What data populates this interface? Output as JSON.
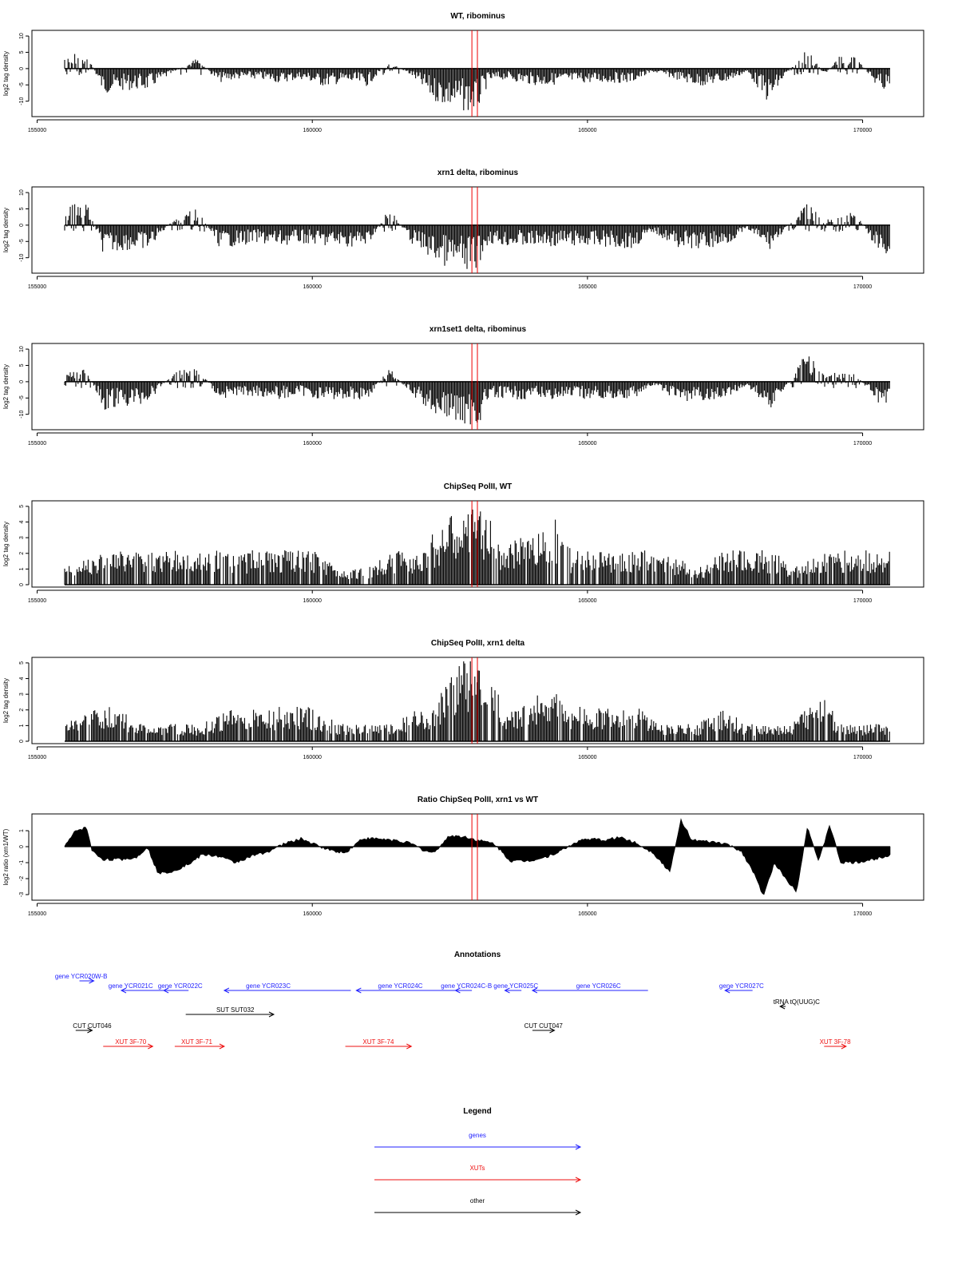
{
  "colors": {
    "genes": "#2222ff",
    "xuts": "#ee1111",
    "other": "#000000",
    "highlight": "#ee0000",
    "bars": "#000000"
  },
  "x_axis": {
    "min": 155000,
    "max": 170500,
    "ticks": [
      155000,
      160000,
      165000,
      170000
    ]
  },
  "highlight_positions": [
    162900,
    163000
  ],
  "chart_data": [
    {
      "type": "bar",
      "title": "WT, ribominus",
      "ylabel": "log2 tag density",
      "ylim": [
        -14,
        11
      ],
      "yticks": [
        -10,
        -5,
        0,
        5,
        10
      ],
      "x": [
        155600,
        155900,
        156200,
        156600,
        157000,
        157500,
        157900,
        158300,
        158600,
        159000,
        159400,
        159800,
        160200,
        160600,
        161000,
        161400,
        161800,
        162200,
        162500,
        162800,
        163000,
        163200,
        163500,
        163800,
        164200,
        164600,
        165000,
        165400,
        165800,
        166200,
        166600,
        167000,
        167500,
        167900,
        168300,
        168600,
        169000,
        169300,
        169600,
        169900,
        170300
      ],
      "values": [
        4,
        5,
        -7,
        -6,
        -6,
        -1,
        3,
        -4,
        -3,
        -3,
        -4,
        -3,
        -5,
        -4,
        -5,
        2,
        -2,
        -9,
        -11,
        -12,
        -12,
        -4,
        -3,
        -4,
        -5,
        -4,
        -4,
        -4,
        -4,
        -1,
        -3,
        -5,
        -4,
        -1,
        -10,
        -2,
        6,
        -2,
        4,
        3,
        -6
      ]
    },
    {
      "type": "bar",
      "title": "xrn1 delta, ribominus",
      "ylabel": "log2 tag density",
      "ylim": [
        -14,
        11
      ],
      "yticks": [
        -10,
        -5,
        0,
        5,
        10
      ],
      "x": [
        155600,
        155900,
        156200,
        156600,
        157000,
        157500,
        157900,
        158300,
        158600,
        159000,
        159400,
        159800,
        160200,
        160600,
        161000,
        161400,
        161800,
        162200,
        162500,
        162800,
        163000,
        163200,
        163500,
        163800,
        164200,
        164600,
        165000,
        165400,
        165800,
        166200,
        166600,
        167000,
        167500,
        167900,
        168300,
        168600,
        169000,
        169300,
        169600,
        169900,
        170300
      ],
      "values": [
        6,
        7,
        -8,
        -7,
        -7,
        2,
        5,
        -6,
        -6,
        -5,
        -6,
        -5,
        -6,
        -6,
        -6,
        5,
        -5,
        -10,
        -12,
        -13,
        -12,
        -5,
        -6,
        -6,
        -6,
        -6,
        -6,
        -6,
        -7,
        -2,
        -6,
        -7,
        -6,
        -1,
        -7,
        -1,
        7,
        2,
        4,
        3,
        -8
      ]
    },
    {
      "type": "bar",
      "title": "xrn1set1 delta, ribominus",
      "ylabel": "log2 tag density",
      "ylim": [
        -14,
        11
      ],
      "yticks": [
        -10,
        -5,
        0,
        5,
        10
      ],
      "x": [
        155600,
        155900,
        156200,
        156600,
        157000,
        157500,
        157900,
        158300,
        158600,
        159000,
        159400,
        159800,
        160200,
        160600,
        161000,
        161400,
        161800,
        162200,
        162500,
        162800,
        163000,
        163200,
        163500,
        163800,
        164200,
        164600,
        165000,
        165400,
        165800,
        166200,
        166600,
        167000,
        167500,
        167900,
        168300,
        168600,
        169000,
        169300,
        169600,
        169900,
        170300
      ],
      "values": [
        3,
        4,
        -8,
        -7,
        -6,
        3,
        5,
        -5,
        -4,
        -4,
        -5,
        -4,
        -5,
        -5,
        -5,
        4,
        -4,
        -9,
        -11,
        -12,
        -13,
        -5,
        -5,
        -5,
        -5,
        -5,
        -5,
        -5,
        -5,
        -1,
        -5,
        -6,
        -5,
        -1,
        -8,
        -2,
        9,
        2,
        3,
        2,
        -7
      ]
    },
    {
      "type": "bar",
      "title": "ChipSeq PolII, WT",
      "ylabel": "log2 tag density",
      "ylim": [
        0,
        5.2
      ],
      "yticks": [
        0,
        1,
        2,
        3,
        4,
        5
      ],
      "x": [
        155500,
        156100,
        156500,
        156900,
        157600,
        158000,
        158500,
        159000,
        159500,
        160000,
        160500,
        161000,
        161500,
        161900,
        162200,
        162500,
        162800,
        163000,
        163200,
        163500,
        163800,
        164100,
        164400,
        164700,
        165100,
        165500,
        165900,
        166300,
        167000,
        167500,
        167900,
        168400,
        168700,
        169300,
        169600,
        170000,
        170300
      ],
      "values": [
        1,
        2,
        2,
        2,
        2,
        2,
        2,
        2,
        2,
        2,
        1,
        1,
        2,
        2,
        3,
        4,
        4,
        5,
        4,
        2,
        3,
        3,
        4,
        2,
        2,
        2,
        2,
        2,
        1,
        2,
        2,
        2,
        1,
        2,
        2,
        2,
        2
      ]
    },
    {
      "type": "bar",
      "title": "ChipSeq PolII, xrn1 delta",
      "ylabel": "log2 tag density",
      "ylim": [
        0,
        5.2
      ],
      "yticks": [
        0,
        1,
        2,
        3,
        4,
        5
      ],
      "x": [
        155500,
        156100,
        156500,
        156900,
        157600,
        158000,
        158500,
        159000,
        159500,
        160000,
        160500,
        161000,
        161500,
        161900,
        162200,
        162500,
        162800,
        163000,
        163200,
        163500,
        163800,
        164100,
        164400,
        164700,
        165100,
        165500,
        165900,
        166300,
        167000,
        167500,
        167900,
        168400,
        168700,
        169300,
        169600,
        170000,
        170300
      ],
      "values": [
        1,
        2,
        2,
        1,
        1,
        1,
        2,
        2,
        2,
        2,
        1,
        1,
        1,
        2,
        2,
        4,
        5,
        5,
        4,
        2,
        2,
        3,
        3,
        2,
        2,
        2,
        2,
        1,
        1,
        2,
        1,
        1,
        1,
        3,
        1,
        1,
        1
      ]
    },
    {
      "type": "area",
      "title": "Ratio ChipSeq PolII, xrn1 vs WT",
      "ylabel": "log2 ratio (xrn1/WT)",
      "ylim": [
        -3.2,
        1.9
      ],
      "yticks": [
        -3,
        -2,
        -1,
        0,
        1
      ],
      "x": [
        155500,
        155700,
        155900,
        156000,
        156200,
        156500,
        156800,
        157000,
        157200,
        157500,
        157800,
        158000,
        158300,
        158600,
        158900,
        159200,
        159500,
        159800,
        160000,
        160300,
        160600,
        160900,
        161200,
        161500,
        161800,
        162000,
        162200,
        162500,
        162800,
        163000,
        163300,
        163600,
        163900,
        164200,
        164500,
        164800,
        165000,
        165300,
        165600,
        165900,
        166200,
        166500,
        166700,
        166900,
        167200,
        167500,
        167800,
        168000,
        168200,
        168400,
        168600,
        168800,
        169000,
        169200,
        169400,
        169600,
        169900,
        170200,
        170500
      ],
      "values": [
        0,
        1.0,
        1.2,
        -0.3,
        -0.8,
        -0.8,
        -0.7,
        0,
        -1.7,
        -1.5,
        -1.0,
        -0.5,
        -0.6,
        -1.0,
        -0.6,
        -0.3,
        0.2,
        0.5,
        0.2,
        -0.2,
        -0.4,
        0.5,
        0.5,
        0.4,
        0.2,
        -0.2,
        -0.4,
        0.7,
        0.6,
        0.4,
        0.2,
        -0.9,
        -0.9,
        -0.7,
        -0.3,
        0.3,
        0.5,
        0.4,
        0.6,
        0.2,
        -0.4,
        -1.6,
        1.7,
        0.4,
        0.3,
        0.2,
        -0.3,
        -1.5,
        -3.1,
        -1.0,
        -2.0,
        -2.8,
        1.3,
        -1.0,
        1.4,
        -1.0,
        -1.0,
        -0.8,
        -0.5
      ]
    }
  ],
  "annotations": {
    "title": "Annotations",
    "items": [
      {
        "label": "gene YCR020W-B",
        "color": "genes",
        "row": 0,
        "start": 156030,
        "end": 156030,
        "dir": "right",
        "text_x": 155800
      },
      {
        "label": "gene YCR021C",
        "color": "genes",
        "row": 1,
        "start": 156530,
        "end": 157750,
        "dir": "left",
        "text_x": 156700
      },
      {
        "label": "gene YCR022C",
        "color": "genes",
        "row": 1,
        "start": 157300,
        "end": 157750,
        "dir": "left",
        "text_x": 157600
      },
      {
        "label": "gene YCR023C",
        "color": "genes",
        "row": 1,
        "start": 158400,
        "end": 160700,
        "dir": "left",
        "text_x": 159200
      },
      {
        "label": "gene YCR024C",
        "color": "genes",
        "row": 1,
        "start": 160800,
        "end": 162700,
        "dir": "left",
        "text_x": 161600
      },
      {
        "label": "gene YCR024C-B",
        "color": "genes",
        "row": 1,
        "start": 162600,
        "end": 162900,
        "dir": "left",
        "text_x": 162800
      },
      {
        "label": "gene YCR025C",
        "color": "genes",
        "row": 1,
        "start": 163500,
        "end": 163800,
        "dir": "left",
        "text_x": 163700
      },
      {
        "label": "gene YCR026C",
        "color": "genes",
        "row": 1,
        "start": 164000,
        "end": 166100,
        "dir": "left",
        "text_x": 165200
      },
      {
        "label": "gene YCR027C",
        "color": "genes",
        "row": 1,
        "start": 167500,
        "end": 168000,
        "dir": "left",
        "text_x": 167800
      },
      {
        "label": "tRNA tQ(UUG)C",
        "color": "other",
        "row": 2,
        "start": 168500,
        "end": 168600,
        "dir": "left",
        "text_x": 168800
      },
      {
        "label": "SUT SUT032",
        "color": "other",
        "row": 3,
        "start": 157700,
        "end": 159300,
        "dir": "right",
        "text_x": 158600
      },
      {
        "label": "CUT CUT046",
        "color": "other",
        "row": 4,
        "start": 155700,
        "end": 156000,
        "dir": "right",
        "text_x": 156000
      },
      {
        "label": "CUT CUT047",
        "color": "other",
        "row": 4,
        "start": 164000,
        "end": 164400,
        "dir": "right",
        "text_x": 164200
      },
      {
        "label": "XUT 3F-70",
        "color": "xuts",
        "row": 5,
        "start": 156200,
        "end": 157100,
        "dir": "right",
        "text_x": 156700
      },
      {
        "label": "XUT 3F-71",
        "color": "xuts",
        "row": 5,
        "start": 157500,
        "end": 158400,
        "dir": "right",
        "text_x": 157900
      },
      {
        "label": "XUT 3F-74",
        "color": "xuts",
        "row": 5,
        "start": 160600,
        "end": 161800,
        "dir": "right",
        "text_x": 161200
      },
      {
        "label": "XUT 3F-78",
        "color": "xuts",
        "row": 5,
        "start": 169300,
        "end": 169700,
        "dir": "right",
        "text_x": 169500
      }
    ]
  },
  "legend": {
    "title": "Legend",
    "items": [
      {
        "label": "genes",
        "color": "genes"
      },
      {
        "label": "XUTs",
        "color": "xuts"
      },
      {
        "label": "other",
        "color": "other"
      }
    ]
  }
}
